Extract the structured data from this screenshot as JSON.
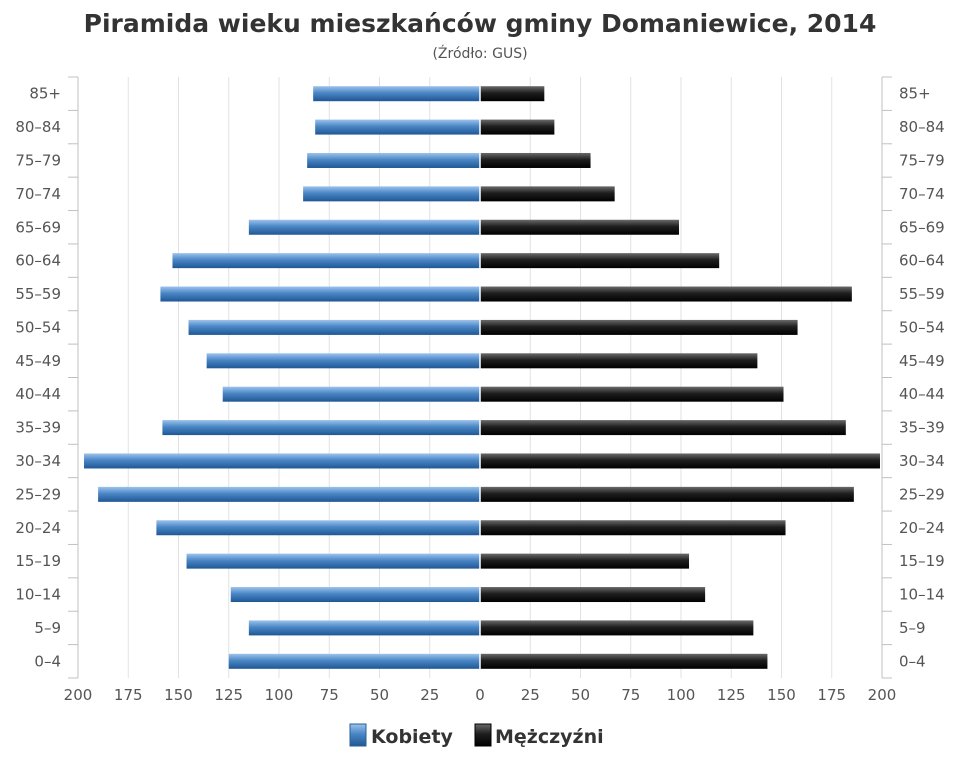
{
  "chart_data": {
    "type": "bar",
    "orientation": "horizontal-pyramid",
    "title": "Piramida wieku mieszkańców gminy Domaniewice, 2014",
    "subtitle": "(Źródło: GUS)",
    "categories": [
      "85+",
      "80–84",
      "75–79",
      "70–74",
      "65–69",
      "60–64",
      "55–59",
      "50–54",
      "45–49",
      "40–44",
      "35–39",
      "30–34",
      "25–29",
      "20–24",
      "15–19",
      "10–14",
      "5–9",
      "0–4"
    ],
    "series": [
      {
        "name": "Kobiety",
        "side": "left",
        "color": "#4a86c5",
        "values": [
          83,
          82,
          86,
          88,
          115,
          153,
          159,
          145,
          136,
          128,
          158,
          197,
          190,
          161,
          146,
          124,
          115,
          125
        ]
      },
      {
        "name": "Mężczyźni",
        "side": "right",
        "color": "#222222",
        "values": [
          32,
          37,
          55,
          67,
          99,
          119,
          185,
          158,
          138,
          151,
          182,
          199,
          186,
          152,
          104,
          112,
          136,
          143
        ]
      }
    ],
    "x_ticks": [
      "200",
      "175",
      "150",
      "125",
      "100",
      "75",
      "50",
      "25",
      "0",
      "25",
      "50",
      "75",
      "100",
      "125",
      "150",
      "175",
      "200"
    ],
    "xlim": [
      -200,
      200
    ],
    "grid": "vertical",
    "legend": "bottom-center"
  }
}
